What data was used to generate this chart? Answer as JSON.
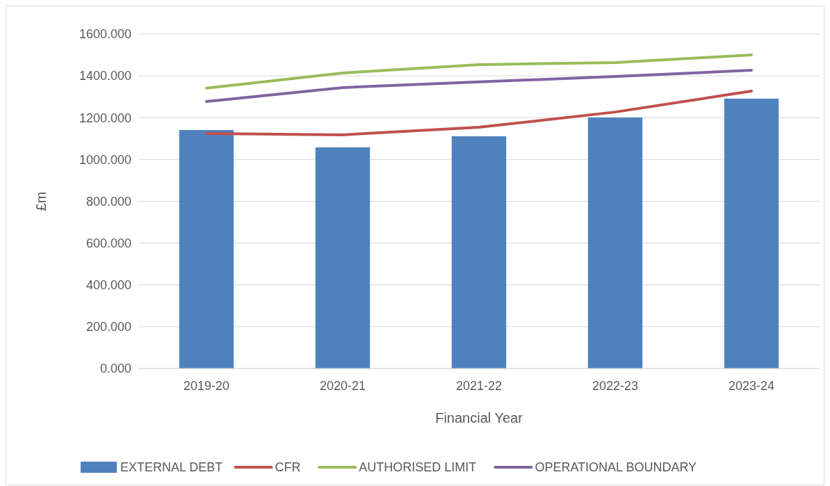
{
  "chart_data": {
    "type": "bar",
    "xlabel": "Financial Year",
    "ylabel": "£m",
    "categories": [
      "2019-20",
      "2020-21",
      "2021-22",
      "2022-23",
      "2023-24"
    ],
    "series": [
      {
        "name": "EXTERNAL DEBT",
        "type": "bar",
        "color": "#4f81bd",
        "values": [
          1141,
          1058,
          1111,
          1201,
          1291
        ]
      },
      {
        "name": "CFR",
        "type": "line",
        "color": "#c0504d",
        "values": [
          1124,
          1118,
          1154,
          1227,
          1327
        ]
      },
      {
        "name": "AUTHORISED LIMIT",
        "type": "line",
        "color": "#9bbb59",
        "values": [
          1341,
          1414,
          1454,
          1464,
          1500
        ]
      },
      {
        "name": "OPERATIONAL BOUNDARY",
        "type": "line",
        "color": "#8064a2",
        "values": [
          1277,
          1344,
          1371,
          1397,
          1427
        ]
      }
    ],
    "ylim": [
      0,
      1600
    ],
    "yticks": [
      {
        "value": 0,
        "label": "0.000"
      },
      {
        "value": 200,
        "label": "200.000"
      },
      {
        "value": 400,
        "label": "400.000"
      },
      {
        "value": 600,
        "label": "600.000"
      },
      {
        "value": 800,
        "label": "800.000"
      },
      {
        "value": 1000,
        "label": "1000.000"
      },
      {
        "value": 1200,
        "label": "1200.000"
      },
      {
        "value": 1400,
        "label": "1400.000"
      },
      {
        "value": 1600,
        "label": "1600.000"
      }
    ],
    "grid": "y",
    "legend": "bottom"
  }
}
